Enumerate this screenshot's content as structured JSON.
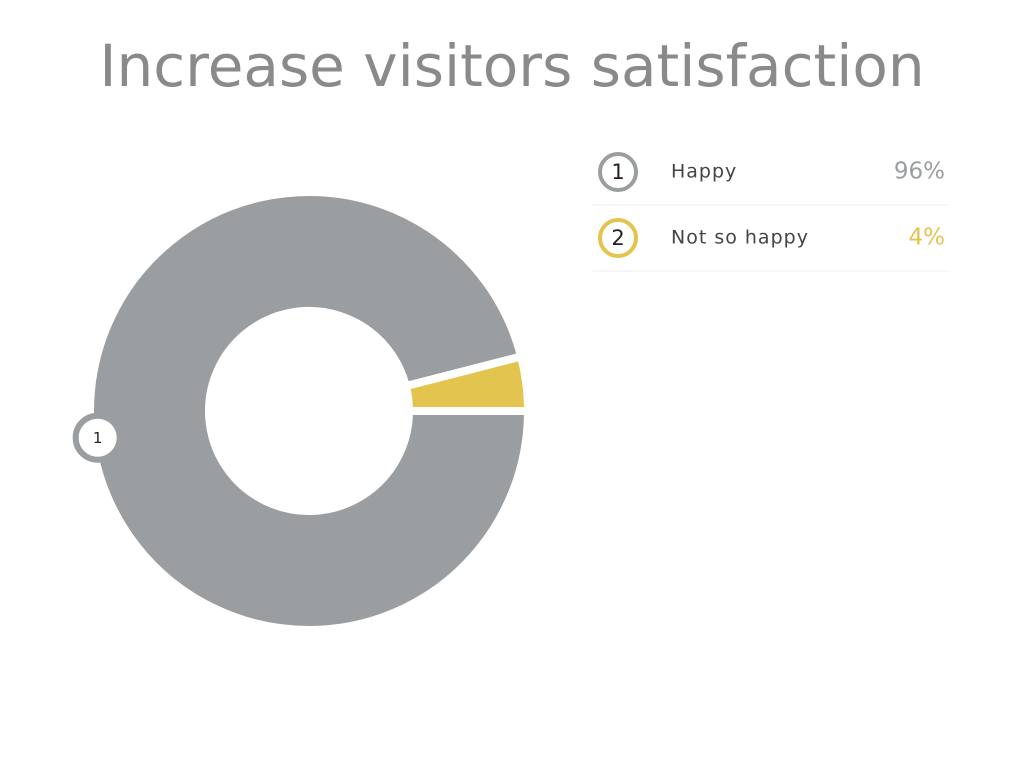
{
  "chart_data": {
    "type": "donut",
    "title": "Increase visitors satisfaction",
    "categories": [
      "Happy",
      "Not so happy"
    ],
    "values": [
      96,
      4
    ],
    "value_labels": [
      "96%",
      "4%"
    ],
    "markers": [
      "1",
      "2"
    ],
    "colors": [
      "#9a9ea1",
      "#e2c44f"
    ]
  }
}
